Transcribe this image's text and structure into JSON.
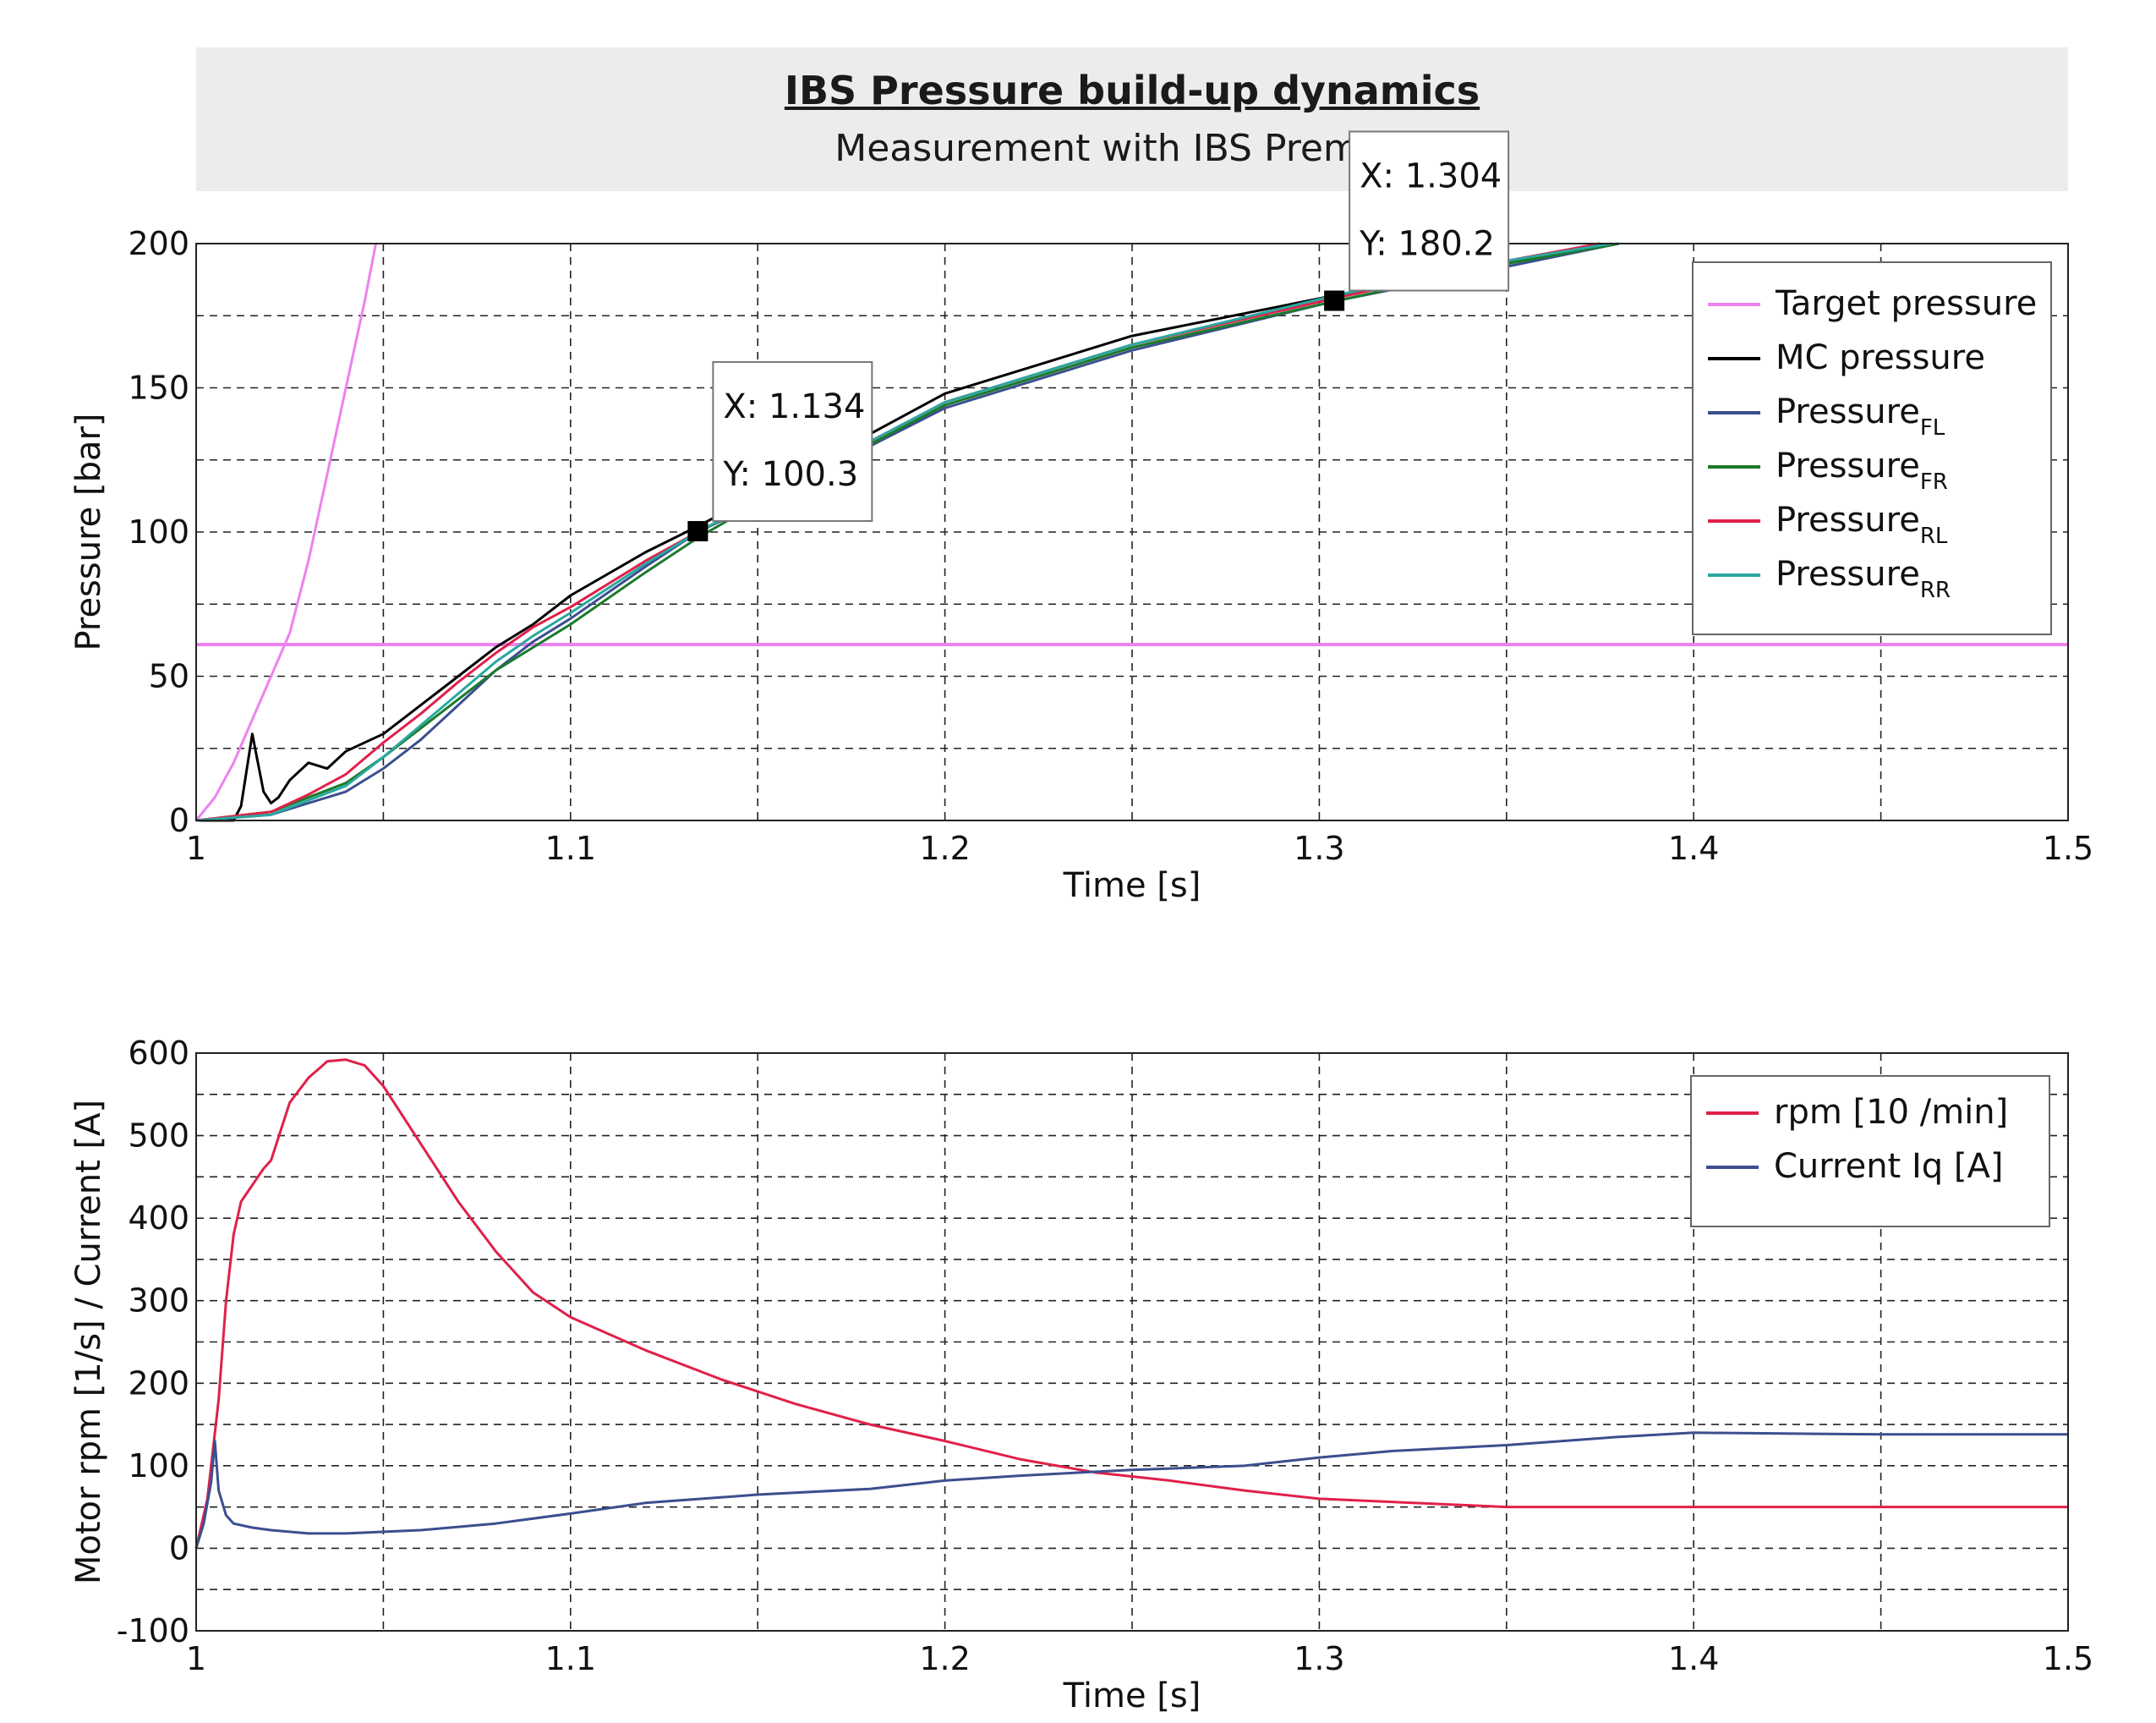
{
  "header": {
    "title": "IBS Pressure build-up dynamics",
    "subtitle": "Measurement with IBS Premium"
  },
  "chart_data": [
    {
      "type": "line",
      "xlabel": "Time [s]",
      "ylabel": "Pressure [bar]",
      "xlim": [
        1,
        1.5
      ],
      "ylim": [
        0,
        200
      ],
      "xticks": [
        "1",
        "1.1",
        "1.2",
        "1.3",
        "1.4",
        "1.5"
      ],
      "yticks": [
        "0",
        "50",
        "100",
        "150",
        "200"
      ],
      "grid": true,
      "legend_position": "top-right",
      "series": [
        {
          "name": "Target pressure",
          "color": "#ee82ee",
          "x": [
            1.0,
            1.005,
            1.01,
            1.015,
            1.02,
            1.025,
            1.03,
            1.035,
            1.04,
            1.045,
            1.048
          ],
          "y": [
            0,
            8,
            20,
            35,
            50,
            65,
            90,
            120,
            150,
            180,
            200
          ]
        },
        {
          "name": "Target pressure",
          "color": "#ee82ee",
          "x": [
            1.0,
            1.5
          ],
          "y": [
            61,
            61
          ]
        },
        {
          "name": "MC pressure",
          "color": "#000000",
          "x": [
            1.0,
            1.01,
            1.012,
            1.015,
            1.018,
            1.02,
            1.022,
            1.025,
            1.03,
            1.035,
            1.04,
            1.05,
            1.06,
            1.07,
            1.08,
            1.09,
            1.1,
            1.12,
            1.134,
            1.15,
            1.2,
            1.25,
            1.304,
            1.35,
            1.375
          ],
          "y": [
            0,
            0,
            5,
            30,
            10,
            6,
            8,
            14,
            20,
            18,
            24,
            30,
            40,
            50,
            60,
            68,
            78,
            93,
            102,
            113,
            148,
            168,
            182,
            193,
            200
          ]
        },
        {
          "name": "PressureFL",
          "color": "#3b4f8f",
          "x": [
            1.0,
            1.02,
            1.03,
            1.04,
            1.05,
            1.06,
            1.07,
            1.08,
            1.09,
            1.1,
            1.12,
            1.134,
            1.15,
            1.2,
            1.25,
            1.304,
            1.35,
            1.38
          ],
          "y": [
            0,
            2,
            6,
            10,
            18,
            28,
            40,
            52,
            62,
            70,
            88,
            100,
            110,
            143,
            163,
            180,
            192,
            200
          ]
        },
        {
          "name": "PressureFR",
          "color": "#1b7a2a",
          "x": [
            1.0,
            1.02,
            1.03,
            1.04,
            1.05,
            1.06,
            1.07,
            1.08,
            1.09,
            1.1,
            1.12,
            1.134,
            1.15,
            1.2,
            1.25,
            1.304,
            1.35,
            1.38
          ],
          "y": [
            0,
            3,
            8,
            13,
            22,
            32,
            42,
            52,
            60,
            68,
            86,
            98,
            110,
            144,
            164,
            180,
            193,
            200
          ]
        },
        {
          "name": "PressureRL",
          "color": "#e0204a",
          "x": [
            1.0,
            1.02,
            1.03,
            1.04,
            1.05,
            1.06,
            1.07,
            1.08,
            1.09,
            1.1,
            1.12,
            1.134,
            1.15,
            1.2,
            1.25,
            1.304,
            1.35,
            1.375
          ],
          "y": [
            0,
            3,
            9,
            16,
            27,
            37,
            48,
            58,
            67,
            74,
            90,
            100,
            111,
            145,
            165,
            181,
            194,
            200
          ]
        },
        {
          "name": "PressureRR",
          "color": "#2aa7a0",
          "x": [
            1.0,
            1.02,
            1.03,
            1.04,
            1.05,
            1.06,
            1.07,
            1.08,
            1.09,
            1.1,
            1.12,
            1.134,
            1.15,
            1.2,
            1.25,
            1.304,
            1.35,
            1.378
          ],
          "y": [
            0,
            2,
            7,
            12,
            22,
            33,
            44,
            55,
            64,
            72,
            89,
            100,
            111,
            145,
            165,
            182,
            194,
            200
          ]
        }
      ],
      "legend": [
        {
          "label": "Target pressure",
          "sub": "",
          "color": "#ee82ee"
        },
        {
          "label": "MC pressure",
          "sub": "",
          "color": "#000000"
        },
        {
          "label": "Pressure",
          "sub": "FL",
          "color": "#3b4f8f"
        },
        {
          "label": "Pressure",
          "sub": "FR",
          "color": "#1b7a2a"
        },
        {
          "label": "Pressure",
          "sub": "RL",
          "color": "#e0204a"
        },
        {
          "label": "Pressure",
          "sub": "RR",
          "color": "#2aa7a0"
        }
      ],
      "annotations": [
        {
          "x": 1.134,
          "y": 100.3,
          "xtext": "X: 1.134",
          "ytext": "Y: 100.3"
        },
        {
          "x": 1.304,
          "y": 180.2,
          "xtext": "X: 1.304",
          "ytext": "Y: 180.2"
        }
      ]
    },
    {
      "type": "line",
      "xlabel": "Time [s]",
      "ylabel": "Motor rpm [1/s] / Current [A]",
      "xlim": [
        1,
        1.5
      ],
      "ylim": [
        -100,
        600
      ],
      "xticks": [
        "1",
        "1.1",
        "1.2",
        "1.3",
        "1.4",
        "1.5"
      ],
      "yticks": [
        "-100",
        "0",
        "100",
        "200",
        "300",
        "400",
        "500",
        "600"
      ],
      "grid": true,
      "legend_position": "top-right",
      "series": [
        {
          "name": "rpm [10 /min]",
          "color": "#e0204a",
          "x": [
            1.0,
            1.003,
            1.006,
            1.008,
            1.01,
            1.012,
            1.015,
            1.018,
            1.02,
            1.025,
            1.03,
            1.035,
            1.04,
            1.045,
            1.05,
            1.06,
            1.07,
            1.08,
            1.09,
            1.1,
            1.12,
            1.14,
            1.16,
            1.18,
            1.2,
            1.22,
            1.24,
            1.26,
            1.28,
            1.3,
            1.35,
            1.4,
            1.45,
            1.5
          ],
          "y": [
            0,
            60,
            180,
            300,
            380,
            420,
            440,
            460,
            470,
            540,
            570,
            590,
            592,
            585,
            560,
            490,
            420,
            360,
            310,
            280,
            240,
            205,
            175,
            150,
            130,
            108,
            92,
            82,
            70,
            60,
            50,
            50,
            50,
            50
          ]
        },
        {
          "name": "Current Iq [A]",
          "color": "#3b4f8f",
          "x": [
            1.0,
            1.002,
            1.004,
            1.005,
            1.006,
            1.008,
            1.01,
            1.015,
            1.02,
            1.03,
            1.04,
            1.06,
            1.08,
            1.1,
            1.12,
            1.15,
            1.18,
            1.2,
            1.22,
            1.25,
            1.28,
            1.3,
            1.32,
            1.35,
            1.38,
            1.4,
            1.45,
            1.5
          ],
          "y": [
            0,
            30,
            80,
            130,
            70,
            40,
            30,
            25,
            22,
            18,
            18,
            22,
            30,
            42,
            55,
            65,
            72,
            82,
            88,
            95,
            100,
            110,
            118,
            125,
            135,
            140,
            138,
            138
          ]
        }
      ],
      "legend": [
        {
          "label": "rpm [10 /min]",
          "sub": "",
          "color": "#e0204a"
        },
        {
          "label": "Current Iq [A]",
          "sub": "",
          "color": "#3b4f8f"
        }
      ]
    }
  ]
}
